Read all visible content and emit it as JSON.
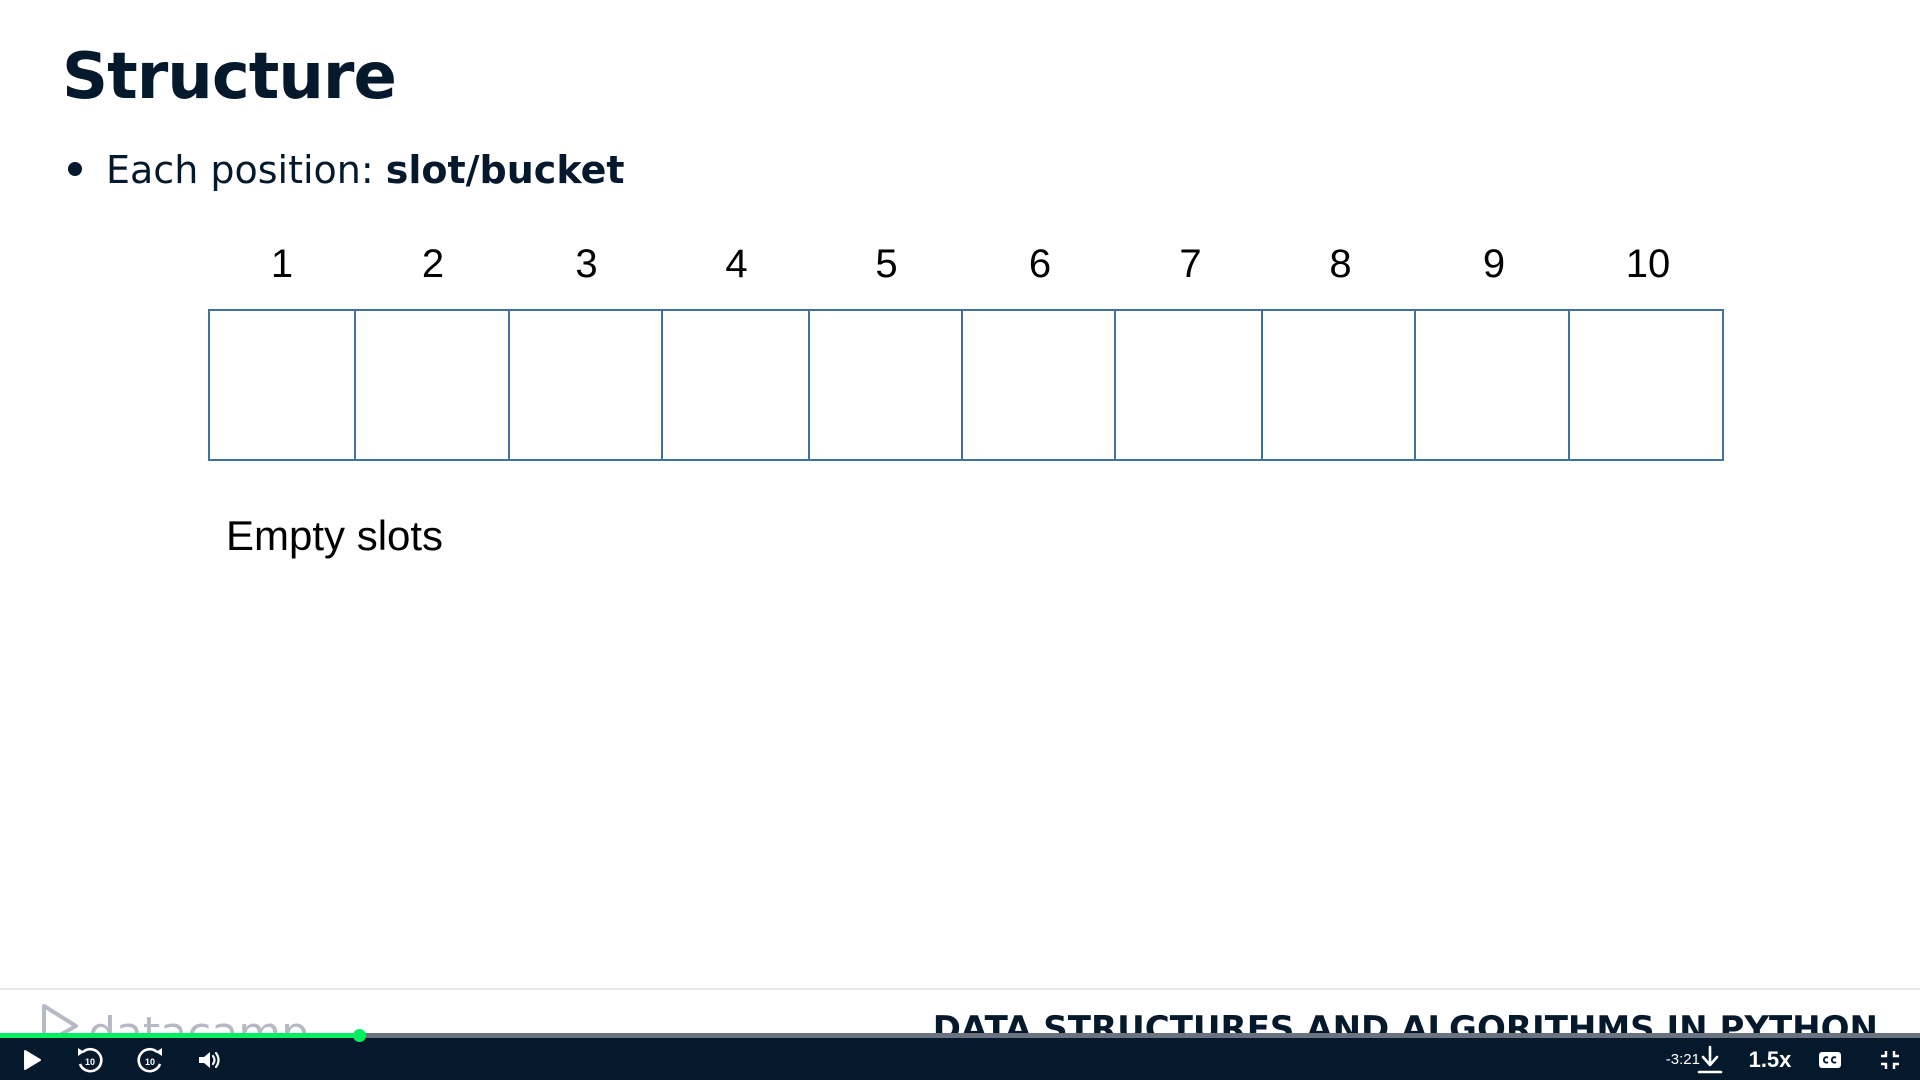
{
  "slide": {
    "title": "Structure",
    "bullet_prefix": "Each position: ",
    "bullet_bold": "slot/bucket"
  },
  "diagram": {
    "slot_numbers": [
      "1",
      "2",
      "3",
      "4",
      "5",
      "6",
      "7",
      "8",
      "9",
      "10"
    ],
    "caption": "Empty slots"
  },
  "footer": {
    "brand": "datacamp",
    "course_title": "DATA STRUCTURES AND ALGORITHMS IN PYTHON"
  },
  "player": {
    "progress": 0.187,
    "time_remaining": "-3:21",
    "speed": "1.5x",
    "controls": {
      "play": "play-icon",
      "rewind": "rewind-10-icon",
      "forward": "forward-10-icon",
      "volume": "volume-icon",
      "download": "download-icon",
      "captions": "captions-icon",
      "fullscreen": "exit-fullscreen-icon"
    }
  },
  "colors": {
    "title": "#05192d",
    "slot_border": "#41719c",
    "progress": "#03ef62",
    "player_bg": "#05192d",
    "brand": "#b5b9c3"
  }
}
